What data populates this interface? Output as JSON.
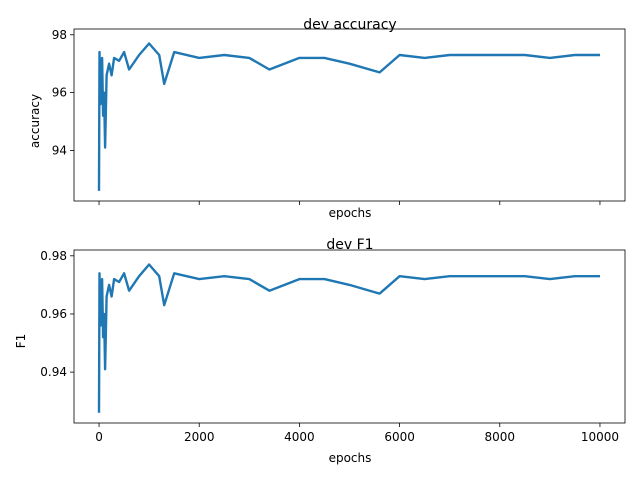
{
  "chart_data": [
    {
      "type": "line",
      "title": "dev accuracy",
      "xlabel": "epochs",
      "ylabel": "accuracy",
      "xlim": [
        -500,
        10500
      ],
      "ylim": [
        92.25,
        98.2
      ],
      "x_ticks": [
        0,
        2000,
        4000,
        6000,
        8000,
        10000
      ],
      "x_tick_labels_visible": false,
      "y_ticks": [
        94,
        96,
        98
      ],
      "y_tick_labels": [
        "94",
        "96",
        "98"
      ],
      "grid": false,
      "color": "#1f77b4",
      "series": [
        {
          "x": [
            0,
            10,
            20,
            30,
            40,
            60,
            80,
            100,
            120,
            150,
            200,
            250,
            300,
            400,
            500,
            600,
            800,
            1000,
            1200,
            1300,
            1500,
            2000,
            2500,
            3000,
            3400,
            4000,
            4500,
            5000,
            5600,
            6000,
            6500,
            7000,
            7500,
            8000,
            8500,
            9000,
            9500,
            10000
          ],
          "y": [
            92.6,
            97.4,
            96.2,
            95.6,
            96.8,
            97.2,
            95.2,
            96.0,
            94.1,
            96.6,
            97.0,
            96.6,
            97.2,
            97.1,
            97.4,
            96.8,
            97.3,
            97.7,
            97.3,
            96.3,
            97.4,
            97.2,
            97.3,
            97.2,
            96.8,
            97.2,
            97.2,
            97.0,
            96.7,
            97.3,
            97.2,
            97.3,
            97.3,
            97.3,
            97.3,
            97.2,
            97.3,
            97.3
          ]
        }
      ]
    },
    {
      "type": "line",
      "title": "dev F1",
      "xlabel": "epochs",
      "ylabel": "F1",
      "xlim": [
        -500,
        10500
      ],
      "ylim": [
        0.9225,
        0.982
      ],
      "x_ticks": [
        0,
        2000,
        4000,
        6000,
        8000,
        10000
      ],
      "x_tick_labels": [
        "0",
        "2000",
        "4000",
        "6000",
        "8000",
        "10000"
      ],
      "y_ticks": [
        0.94,
        0.96,
        0.98
      ],
      "y_tick_labels": [
        "0.94",
        "0.96",
        "0.98"
      ],
      "grid": false,
      "color": "#1f77b4",
      "series": [
        {
          "x": [
            0,
            10,
            20,
            30,
            40,
            60,
            80,
            100,
            120,
            150,
            200,
            250,
            300,
            400,
            500,
            600,
            800,
            1000,
            1200,
            1300,
            1500,
            2000,
            2500,
            3000,
            3400,
            4000,
            4500,
            5000,
            5600,
            6000,
            6500,
            7000,
            7500,
            8000,
            8500,
            9000,
            9500,
            10000
          ],
          "y": [
            0.926,
            0.974,
            0.962,
            0.956,
            0.968,
            0.972,
            0.952,
            0.96,
            0.941,
            0.966,
            0.97,
            0.966,
            0.972,
            0.971,
            0.974,
            0.968,
            0.973,
            0.977,
            0.973,
            0.963,
            0.974,
            0.972,
            0.973,
            0.972,
            0.968,
            0.972,
            0.972,
            0.97,
            0.967,
            0.973,
            0.972,
            0.973,
            0.973,
            0.973,
            0.973,
            0.972,
            0.973,
            0.973
          ]
        }
      ]
    }
  ]
}
